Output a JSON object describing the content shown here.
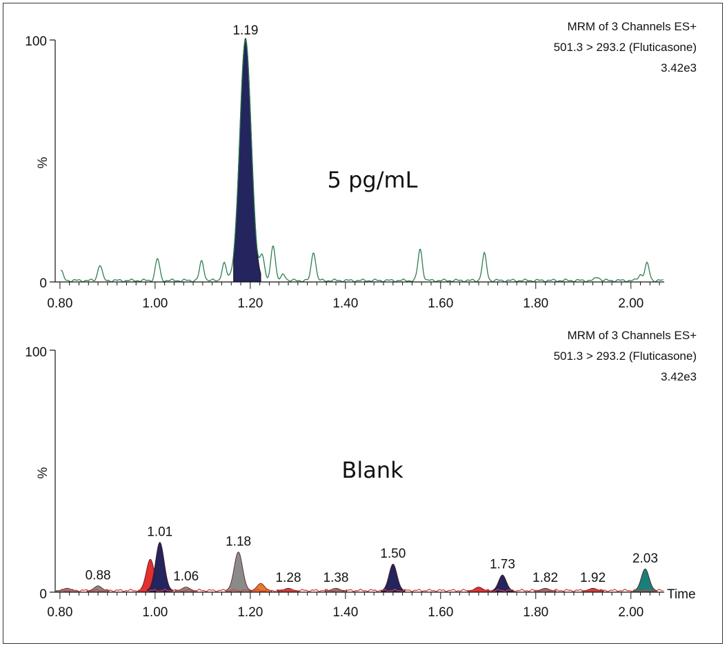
{
  "chart_data": [
    {
      "type": "line",
      "header": [
        "MRM of 3 Channels ES+",
        "501.3 > 293.2 (Fluticasone)",
        "3.42e3"
      ],
      "annotation": "5 pg/mL",
      "ylabel": "%",
      "xlabel": "",
      "xlim": [
        0.79,
        2.07
      ],
      "ylim": [
        0,
        100
      ],
      "x_ticks": [
        "0.80",
        "1.00",
        "1.20",
        "1.40",
        "1.60",
        "1.80",
        "2.00"
      ],
      "y_ticks": [
        "0",
        "100"
      ],
      "grid": false,
      "legend": "none",
      "baseline_color": "#2e7d4f",
      "peak": {
        "label": "1.19",
        "rt": 1.19,
        "height": 100,
        "width": 0.012,
        "fill": "#24245e",
        "from": 1.165,
        "to": 1.222
      },
      "noise_peaks": [
        {
          "rt": 0.802,
          "height": 4
        },
        {
          "rt": 0.884,
          "height": 6.5
        },
        {
          "rt": 1.005,
          "height": 9
        },
        {
          "rt": 1.098,
          "height": 8
        },
        {
          "rt": 1.145,
          "height": 7
        },
        {
          "rt": 1.225,
          "height": 10
        },
        {
          "rt": 1.248,
          "height": 15
        },
        {
          "rt": 1.27,
          "height": 2.5
        },
        {
          "rt": 1.333,
          "height": 12
        },
        {
          "rt": 1.557,
          "height": 13
        },
        {
          "rt": 1.692,
          "height": 11
        },
        {
          "rt": 1.93,
          "height": 1.5
        },
        {
          "rt": 2.02,
          "height": 2.5
        },
        {
          "rt": 2.034,
          "height": 7
        }
      ]
    },
    {
      "type": "line",
      "header": [
        "MRM of 3 Channels ES+",
        "501.3 > 293.2 (Fluticasone)",
        "3.42e3"
      ],
      "annotation": "Blank",
      "ylabel": "%",
      "xlabel": "Time",
      "xlim": [
        0.79,
        2.07
      ],
      "ylim": [
        0,
        100
      ],
      "x_ticks": [
        "0.80",
        "1.00",
        "1.20",
        "1.40",
        "1.60",
        "1.80",
        "2.00"
      ],
      "y_ticks": [
        "0",
        "100"
      ],
      "grid": false,
      "legend": "none",
      "baseline_color": "#d04040",
      "peaks": [
        {
          "rt": 0.815,
          "height": 1.0,
          "fill": "#888888",
          "label": ""
        },
        {
          "rt": 0.88,
          "height": 2.0,
          "fill": "#888888",
          "label": "0.88"
        },
        {
          "rt": 0.99,
          "height": 13,
          "fill": "#e03030",
          "label": ""
        },
        {
          "rt": 1.01,
          "height": 20,
          "fill": "#24245e",
          "label": "1.01"
        },
        {
          "rt": 1.065,
          "height": 1.5,
          "fill": "#888888",
          "label": "1.06"
        },
        {
          "rt": 1.175,
          "height": 16,
          "fill": "#8a8a8a",
          "label": "1.18"
        },
        {
          "rt": 1.222,
          "height": 3,
          "fill": "#e8782a",
          "label": ""
        },
        {
          "rt": 1.28,
          "height": 1.0,
          "fill": "#d04040",
          "label": "1.28"
        },
        {
          "rt": 1.38,
          "height": 1.0,
          "fill": "#888888",
          "label": "1.38"
        },
        {
          "rt": 1.5,
          "height": 11,
          "fill": "#24245e",
          "label": "1.50"
        },
        {
          "rt": 1.68,
          "height": 1.5,
          "fill": "#e03030",
          "label": ""
        },
        {
          "rt": 1.73,
          "height": 6.5,
          "fill": "#24245e",
          "label": "1.73"
        },
        {
          "rt": 1.82,
          "height": 1.0,
          "fill": "#888888",
          "label": "1.82"
        },
        {
          "rt": 1.92,
          "height": 1.0,
          "fill": "#d04040",
          "label": "1.92"
        },
        {
          "rt": 2.03,
          "height": 9,
          "fill": "#1a7f7a",
          "label": "2.03"
        }
      ]
    }
  ]
}
